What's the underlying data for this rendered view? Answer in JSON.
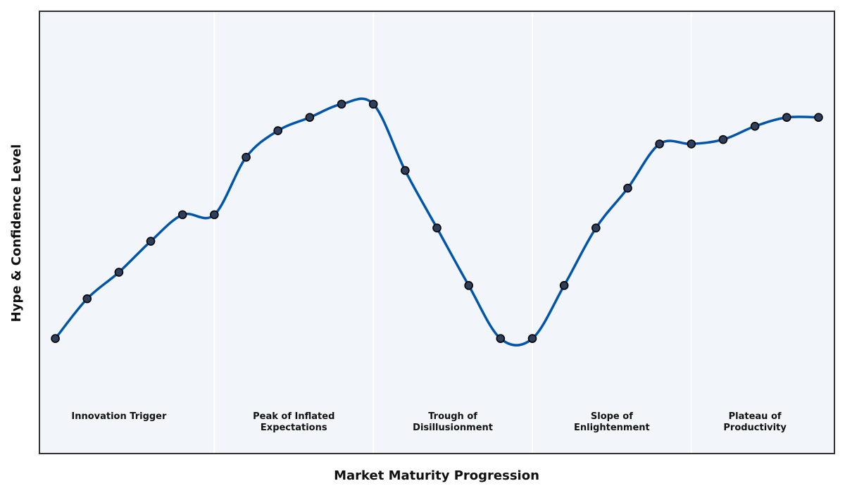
{
  "chart_data": {
    "type": "line",
    "title": "",
    "xlabel": "Market Maturity Progression",
    "ylabel": "Hype & Confidence Level",
    "x_ticks_visible": false,
    "y_ticks_visible": false,
    "xlim": [
      -0.5,
      24.5
    ],
    "ylim": [
      0,
      100
    ],
    "grid": false,
    "legend": "none",
    "phases": [
      {
        "label": "Innovation Trigger",
        "start": -0.5,
        "end": 5
      },
      {
        "label": "Peak of Inflated\nExpectations",
        "start": 5,
        "end": 10
      },
      {
        "label": "Trough of\nDisillusionment",
        "start": 10,
        "end": 15
      },
      {
        "label": "Slope of\nEnlightenment",
        "start": 15,
        "end": 20
      },
      {
        "label": "Plateau of\nProductivity",
        "start": 20,
        "end": 24.5
      }
    ],
    "series": [
      {
        "x": [
          0,
          1,
          2,
          3,
          4,
          5,
          6,
          7,
          8,
          9,
          10,
          11,
          12,
          13,
          14,
          15,
          16,
          17,
          18,
          19,
          20,
          21,
          22,
          23,
          24
        ],
        "values": [
          26,
          35,
          41,
          48,
          54,
          54,
          67,
          73,
          76,
          79,
          79,
          64,
          51,
          38,
          26,
          26,
          38,
          51,
          60,
          70,
          70,
          71,
          74,
          76,
          76
        ]
      }
    ],
    "colors": {
      "line": "#0055aa",
      "marker_fill": "#2e3f5c",
      "marker_edge": "#000000",
      "plot_background": "#f2f6fa",
      "phase_divider": "#ffffff",
      "frame": "#333333"
    }
  }
}
